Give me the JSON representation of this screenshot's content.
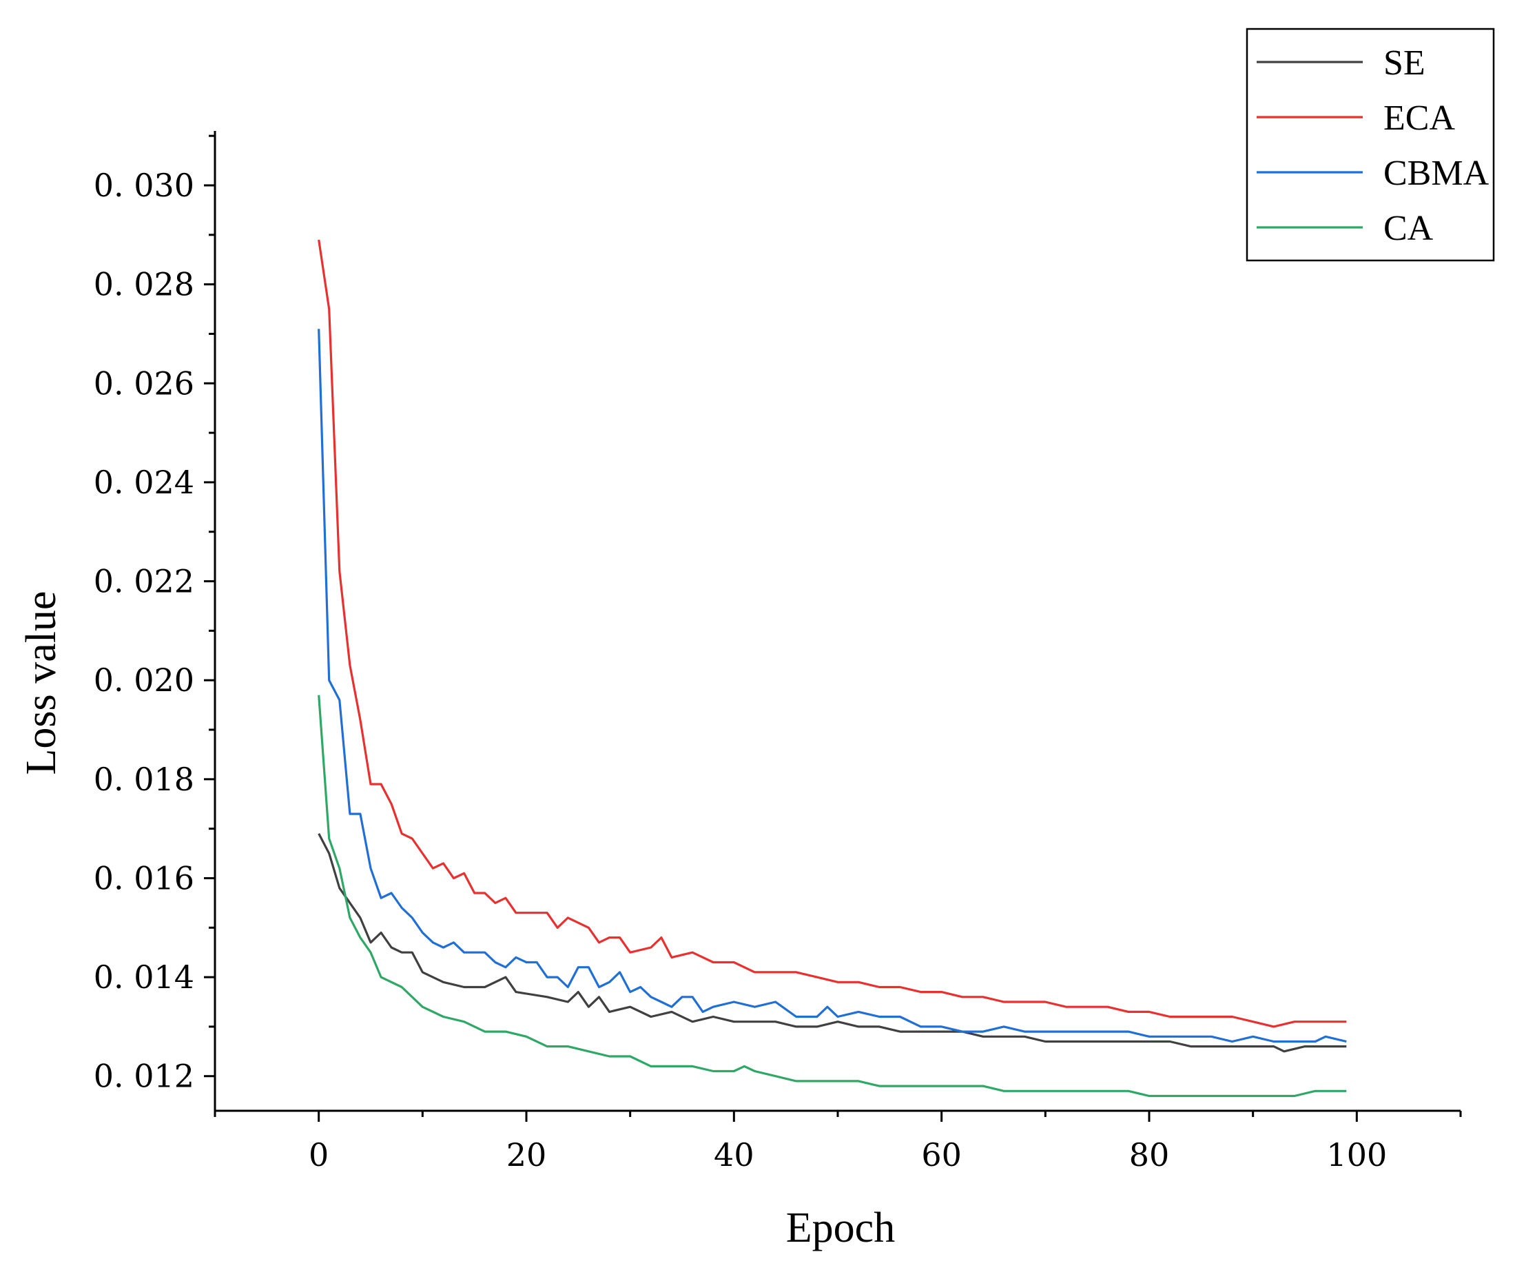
{
  "chart_data": {
    "type": "line",
    "title": "",
    "xlabel": "Epoch",
    "ylabel": "Loss value",
    "xlim": [
      -10,
      110
    ],
    "ylim": [
      0.0113,
      0.0311
    ],
    "x_ticks": [
      0,
      20,
      40,
      60,
      80,
      100
    ],
    "x_tick_labels": [
      "0",
      "20",
      "40",
      "60",
      "80",
      "100"
    ],
    "y_ticks": [
      0.012,
      0.014,
      0.016,
      0.018,
      0.02,
      0.022,
      0.024,
      0.026,
      0.028,
      0.03
    ],
    "y_tick_labels": [
      "0. 012",
      "0. 014",
      "0. 016",
      "0. 018",
      "0. 020",
      "0. 022",
      "0. 024",
      "0. 026",
      "0. 028",
      "0. 030"
    ],
    "grid": false,
    "legend_position": "top-right",
    "series": [
      {
        "name": "SE",
        "color": "#404040",
        "points": [
          [
            0,
            0.0169
          ],
          [
            1,
            0.0165
          ],
          [
            2,
            0.0158
          ],
          [
            3,
            0.0155
          ],
          [
            4,
            0.0152
          ],
          [
            5,
            0.0147
          ],
          [
            6,
            0.0149
          ],
          [
            7,
            0.0146
          ],
          [
            8,
            0.0145
          ],
          [
            9,
            0.0145
          ],
          [
            10,
            0.0141
          ],
          [
            12,
            0.0139
          ],
          [
            14,
            0.0138
          ],
          [
            16,
            0.0138
          ],
          [
            18,
            0.014
          ],
          [
            19,
            0.0137
          ],
          [
            22,
            0.0136
          ],
          [
            24,
            0.0135
          ],
          [
            25,
            0.0137
          ],
          [
            26,
            0.0134
          ],
          [
            27,
            0.0136
          ],
          [
            28,
            0.0133
          ],
          [
            30,
            0.0134
          ],
          [
            32,
            0.0132
          ],
          [
            34,
            0.0133
          ],
          [
            36,
            0.0131
          ],
          [
            38,
            0.0132
          ],
          [
            40,
            0.0131
          ],
          [
            42,
            0.0131
          ],
          [
            44,
            0.0131
          ],
          [
            46,
            0.013
          ],
          [
            48,
            0.013
          ],
          [
            50,
            0.0131
          ],
          [
            52,
            0.013
          ],
          [
            54,
            0.013
          ],
          [
            56,
            0.0129
          ],
          [
            58,
            0.0129
          ],
          [
            60,
            0.0129
          ],
          [
            62,
            0.0129
          ],
          [
            64,
            0.0128
          ],
          [
            66,
            0.0128
          ],
          [
            68,
            0.0128
          ],
          [
            70,
            0.0127
          ],
          [
            72,
            0.0127
          ],
          [
            74,
            0.0127
          ],
          [
            76,
            0.0127
          ],
          [
            78,
            0.0127
          ],
          [
            80,
            0.0127
          ],
          [
            82,
            0.0127
          ],
          [
            84,
            0.0126
          ],
          [
            86,
            0.0126
          ],
          [
            88,
            0.0126
          ],
          [
            90,
            0.0126
          ],
          [
            92,
            0.0126
          ],
          [
            93,
            0.0125
          ],
          [
            95,
            0.0126
          ],
          [
            97,
            0.0126
          ],
          [
            99,
            0.0126
          ]
        ]
      },
      {
        "name": "ECA",
        "color": "#e8312f",
        "points": [
          [
            0,
            0.0289
          ],
          [
            1,
            0.0275
          ],
          [
            2,
            0.0222
          ],
          [
            3,
            0.0203
          ],
          [
            4,
            0.0192
          ],
          [
            5,
            0.0179
          ],
          [
            6,
            0.0179
          ],
          [
            7,
            0.0175
          ],
          [
            8,
            0.0169
          ],
          [
            9,
            0.0168
          ],
          [
            10,
            0.0165
          ],
          [
            11,
            0.0162
          ],
          [
            12,
            0.0163
          ],
          [
            13,
            0.016
          ],
          [
            14,
            0.0161
          ],
          [
            15,
            0.0157
          ],
          [
            16,
            0.0157
          ],
          [
            17,
            0.0155
          ],
          [
            18,
            0.0156
          ],
          [
            19,
            0.0153
          ],
          [
            20,
            0.0153
          ],
          [
            22,
            0.0153
          ],
          [
            23,
            0.015
          ],
          [
            24,
            0.0152
          ],
          [
            26,
            0.015
          ],
          [
            27,
            0.0147
          ],
          [
            28,
            0.0148
          ],
          [
            29,
            0.0148
          ],
          [
            30,
            0.0145
          ],
          [
            32,
            0.0146
          ],
          [
            33,
            0.0148
          ],
          [
            34,
            0.0144
          ],
          [
            36,
            0.0145
          ],
          [
            38,
            0.0143
          ],
          [
            40,
            0.0143
          ],
          [
            42,
            0.0141
          ],
          [
            44,
            0.0141
          ],
          [
            46,
            0.0141
          ],
          [
            48,
            0.014
          ],
          [
            50,
            0.0139
          ],
          [
            52,
            0.0139
          ],
          [
            54,
            0.0138
          ],
          [
            56,
            0.0138
          ],
          [
            58,
            0.0137
          ],
          [
            60,
            0.0137
          ],
          [
            62,
            0.0136
          ],
          [
            64,
            0.0136
          ],
          [
            66,
            0.0135
          ],
          [
            68,
            0.0135
          ],
          [
            70,
            0.0135
          ],
          [
            72,
            0.0134
          ],
          [
            74,
            0.0134
          ],
          [
            76,
            0.0134
          ],
          [
            78,
            0.0133
          ],
          [
            80,
            0.0133
          ],
          [
            82,
            0.0132
          ],
          [
            84,
            0.0132
          ],
          [
            86,
            0.0132
          ],
          [
            88,
            0.0132
          ],
          [
            90,
            0.0131
          ],
          [
            92,
            0.013
          ],
          [
            94,
            0.0131
          ],
          [
            96,
            0.0131
          ],
          [
            98,
            0.0131
          ],
          [
            99,
            0.0131
          ]
        ]
      },
      {
        "name": "CBMA",
        "color": "#1f6fd6",
        "points": [
          [
            0,
            0.0271
          ],
          [
            1,
            0.02
          ],
          [
            2,
            0.0196
          ],
          [
            3,
            0.0173
          ],
          [
            4,
            0.0173
          ],
          [
            5,
            0.0162
          ],
          [
            6,
            0.0156
          ],
          [
            7,
            0.0157
          ],
          [
            8,
            0.0154
          ],
          [
            9,
            0.0152
          ],
          [
            10,
            0.0149
          ],
          [
            11,
            0.0147
          ],
          [
            12,
            0.0146
          ],
          [
            13,
            0.0147
          ],
          [
            14,
            0.0145
          ],
          [
            16,
            0.0145
          ],
          [
            17,
            0.0143
          ],
          [
            18,
            0.0142
          ],
          [
            19,
            0.0144
          ],
          [
            20,
            0.0143
          ],
          [
            21,
            0.0143
          ],
          [
            22,
            0.014
          ],
          [
            23,
            0.014
          ],
          [
            24,
            0.0138
          ],
          [
            25,
            0.0142
          ],
          [
            26,
            0.0142
          ],
          [
            27,
            0.0138
          ],
          [
            28,
            0.0139
          ],
          [
            29,
            0.0141
          ],
          [
            30,
            0.0137
          ],
          [
            31,
            0.0138
          ],
          [
            32,
            0.0136
          ],
          [
            33,
            0.0135
          ],
          [
            34,
            0.0134
          ],
          [
            35,
            0.0136
          ],
          [
            36,
            0.0136
          ],
          [
            37,
            0.0133
          ],
          [
            38,
            0.0134
          ],
          [
            40,
            0.0135
          ],
          [
            42,
            0.0134
          ],
          [
            44,
            0.0135
          ],
          [
            46,
            0.0132
          ],
          [
            48,
            0.0132
          ],
          [
            49,
            0.0134
          ],
          [
            50,
            0.0132
          ],
          [
            52,
            0.0133
          ],
          [
            54,
            0.0132
          ],
          [
            56,
            0.0132
          ],
          [
            58,
            0.013
          ],
          [
            60,
            0.013
          ],
          [
            62,
            0.0129
          ],
          [
            64,
            0.0129
          ],
          [
            66,
            0.013
          ],
          [
            68,
            0.0129
          ],
          [
            70,
            0.0129
          ],
          [
            72,
            0.0129
          ],
          [
            74,
            0.0129
          ],
          [
            76,
            0.0129
          ],
          [
            78,
            0.0129
          ],
          [
            80,
            0.0128
          ],
          [
            82,
            0.0128
          ],
          [
            84,
            0.0128
          ],
          [
            86,
            0.0128
          ],
          [
            88,
            0.0127
          ],
          [
            90,
            0.0128
          ],
          [
            92,
            0.0127
          ],
          [
            94,
            0.0127
          ],
          [
            96,
            0.0127
          ],
          [
            97,
            0.0128
          ],
          [
            99,
            0.0127
          ]
        ]
      },
      {
        "name": "CA",
        "color": "#2ea865",
        "points": [
          [
            0,
            0.0197
          ],
          [
            1,
            0.0168
          ],
          [
            2,
            0.0162
          ],
          [
            3,
            0.0152
          ],
          [
            4,
            0.0148
          ],
          [
            5,
            0.0145
          ],
          [
            6,
            0.014
          ],
          [
            8,
            0.0138
          ],
          [
            10,
            0.0134
          ],
          [
            12,
            0.0132
          ],
          [
            14,
            0.0131
          ],
          [
            16,
            0.0129
          ],
          [
            18,
            0.0129
          ],
          [
            20,
            0.0128
          ],
          [
            22,
            0.0126
          ],
          [
            24,
            0.0126
          ],
          [
            26,
            0.0125
          ],
          [
            28,
            0.0124
          ],
          [
            30,
            0.0124
          ],
          [
            32,
            0.0122
          ],
          [
            34,
            0.0122
          ],
          [
            36,
            0.0122
          ],
          [
            38,
            0.0121
          ],
          [
            40,
            0.0121
          ],
          [
            41,
            0.0122
          ],
          [
            42,
            0.0121
          ],
          [
            44,
            0.012
          ],
          [
            46,
            0.0119
          ],
          [
            48,
            0.0119
          ],
          [
            50,
            0.0119
          ],
          [
            52,
            0.0119
          ],
          [
            54,
            0.0118
          ],
          [
            56,
            0.0118
          ],
          [
            58,
            0.0118
          ],
          [
            60,
            0.0118
          ],
          [
            62,
            0.0118
          ],
          [
            64,
            0.0118
          ],
          [
            66,
            0.0117
          ],
          [
            68,
            0.0117
          ],
          [
            70,
            0.0117
          ],
          [
            72,
            0.0117
          ],
          [
            74,
            0.0117
          ],
          [
            76,
            0.0117
          ],
          [
            78,
            0.0117
          ],
          [
            80,
            0.0116
          ],
          [
            82,
            0.0116
          ],
          [
            84,
            0.0116
          ],
          [
            86,
            0.0116
          ],
          [
            88,
            0.0116
          ],
          [
            90,
            0.0116
          ],
          [
            92,
            0.0116
          ],
          [
            94,
            0.0116
          ],
          [
            96,
            0.0117
          ],
          [
            98,
            0.0117
          ],
          [
            99,
            0.0117
          ]
        ]
      }
    ]
  }
}
